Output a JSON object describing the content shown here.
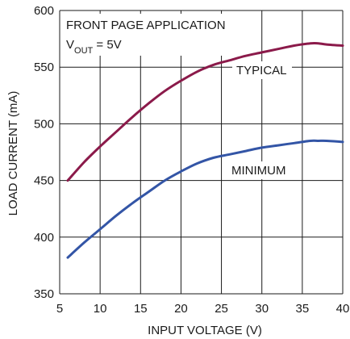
{
  "chart_data": {
    "type": "line",
    "title": "FRONT PAGE APPLICATION",
    "subtitle": {
      "main": "V",
      "sub": "OUT",
      "rest": " = 5V"
    },
    "xlabel": "INPUT VOLTAGE (V)",
    "ylabel": "LOAD CURRENT (mA)",
    "xlim": [
      5,
      40
    ],
    "ylim": [
      350,
      600
    ],
    "xticks": [
      5,
      10,
      15,
      20,
      25,
      30,
      35,
      40
    ],
    "yticks": [
      350,
      400,
      450,
      500,
      550,
      600
    ],
    "grid": true,
    "series": [
      {
        "name": "TYPICAL",
        "color": "#8b1a4a",
        "x": [
          6,
          8,
          10,
          12,
          14,
          16,
          18,
          20,
          22,
          24,
          26,
          28,
          30,
          32,
          34,
          36,
          37,
          38,
          40
        ],
        "y": [
          450,
          466,
          480,
          493,
          506,
          518,
          529,
          538,
          546,
          552,
          556,
          560,
          563,
          566,
          569,
          571,
          571,
          570,
          569
        ]
      },
      {
        "name": "MINIMUM",
        "color": "#3355a6",
        "x": [
          6,
          8,
          10,
          12,
          14,
          16,
          18,
          20,
          22,
          24,
          26,
          28,
          30,
          32,
          34,
          36,
          37,
          38,
          40
        ],
        "y": [
          382,
          395,
          407,
          419,
          430,
          440,
          450,
          458,
          465,
          470,
          473,
          476,
          479,
          481,
          483,
          485,
          485,
          485,
          484
        ]
      }
    ]
  }
}
